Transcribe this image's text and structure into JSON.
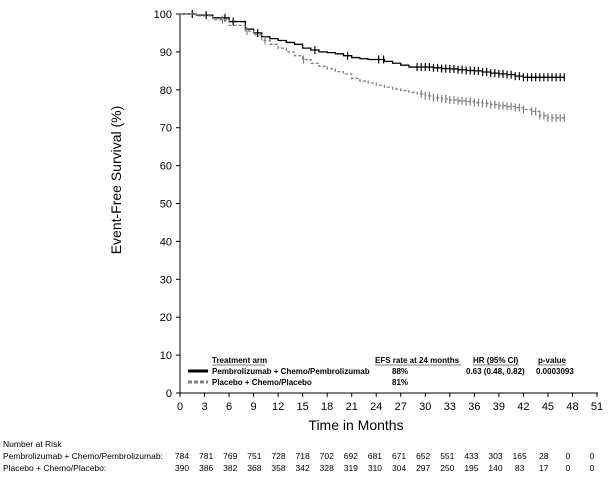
{
  "chart_data": {
    "type": "line",
    "title": "",
    "xlabel": "Time in Months",
    "ylabel": "Event-Free Survival (%)",
    "xlim": [
      0,
      51
    ],
    "ylim": [
      0,
      100
    ],
    "xticks": [
      0,
      3,
      6,
      9,
      12,
      15,
      18,
      21,
      24,
      27,
      30,
      33,
      36,
      39,
      42,
      45,
      48,
      51
    ],
    "yticks": [
      0,
      10,
      20,
      30,
      40,
      50,
      60,
      70,
      80,
      90,
      100
    ],
    "grid": false,
    "series": [
      {
        "name": "Pembrolizumab + Chemo/Pembrolizumab",
        "color": "#000000",
        "line_style": "solid",
        "x": [
          0,
          2,
          4,
          6,
          8,
          9,
          10,
          11,
          12,
          13,
          14,
          15,
          16,
          17,
          18,
          19,
          20,
          21,
          22,
          23,
          24,
          25,
          26,
          27,
          28,
          29,
          30,
          31,
          32,
          33,
          34,
          35,
          36,
          37,
          38,
          39,
          40,
          41,
          42,
          43,
          44,
          45,
          46,
          47
        ],
        "y": [
          100,
          99.7,
          99,
          98,
          96,
          95,
          94,
          93.5,
          93,
          92.5,
          92,
          91,
          90.5,
          90,
          89.8,
          89.5,
          89,
          88.5,
          88.2,
          88,
          88,
          87.5,
          87,
          86.5,
          86,
          86,
          86,
          85.8,
          85.6,
          85.5,
          85.3,
          85.1,
          85,
          84.7,
          84.4,
          84.2,
          84,
          83.6,
          83.3,
          83.3,
          83.3,
          83.3,
          83.3,
          83.3
        ],
        "censor_x": [
          1.5,
          3.2,
          5.5,
          6.5,
          9.5,
          16.5,
          20.5,
          24.3,
          24.9,
          29.0,
          29.5,
          30.0,
          30.5,
          31.0,
          31.5,
          32.0,
          32.5,
          33.0,
          33.5,
          34.0,
          34.5,
          35.0,
          35.5,
          36.0,
          36.5,
          37.0,
          37.5,
          38.0,
          38.5,
          39.0,
          39.5,
          40.0,
          40.5,
          41.0,
          41.5,
          42.0,
          42.5,
          43.0,
          43.5,
          44.0,
          44.5,
          45.0,
          45.5,
          46.0,
          46.5,
          47.0
        ]
      },
      {
        "name": "Placebo + Chemo/Placebo",
        "color": "#808080",
        "line_style": "dashed",
        "x": [
          0,
          2,
          4,
          6,
          8,
          9,
          10,
          11,
          12,
          13,
          14,
          15,
          16,
          17,
          18,
          19,
          20,
          21,
          22,
          23,
          24,
          25,
          26,
          27,
          28,
          29,
          30,
          31,
          32,
          33,
          34,
          35,
          36,
          37,
          38,
          39,
          40,
          41,
          42,
          43,
          44,
          45,
          46,
          47
        ],
        "y": [
          100,
          99.5,
          98.5,
          97,
          95.5,
          94.5,
          93,
          92,
          91,
          90,
          89,
          88,
          87,
          86.2,
          85.5,
          84.8,
          84.2,
          83,
          82.3,
          81.8,
          81.2,
          80.7,
          80.2,
          79.8,
          79.3,
          78.9,
          78.4,
          77.9,
          77.6,
          77.3,
          77.1,
          76.9,
          76.6,
          76.4,
          76.1,
          75.8,
          75.6,
          75.3,
          74.8,
          74.3,
          73.2,
          72.6,
          72.6,
          72.6
        ],
        "censor_x": [
          5.2,
          8.2,
          10.4,
          15.1,
          29.5,
          30.0,
          30.5,
          31.0,
          31.5,
          32.0,
          32.5,
          33.0,
          33.5,
          34.0,
          34.5,
          35.0,
          35.5,
          36.0,
          36.5,
          37.0,
          37.5,
          38.0,
          38.5,
          39.0,
          39.5,
          40.0,
          40.5,
          41.0,
          41.5,
          42.0,
          43.0,
          43.5,
          44.0,
          44.5,
          45.0,
          45.5,
          46.0,
          46.5,
          47.0
        ]
      }
    ],
    "legend_table": {
      "headers": [
        "Treatment arm",
        "EFS rate at 24 months",
        "HR (95% CI)",
        "p-value"
      ],
      "rows": [
        {
          "arm": "Pembrolizumab + Chemo/Pembrolizumab",
          "efs": "88%",
          "hr": "0.63 (0.48, 0.82)",
          "p": "0.0003093"
        },
        {
          "arm": "Placebo + Chemo/Placebo",
          "efs": "81%",
          "hr": "",
          "p": ""
        }
      ]
    },
    "risk_table": {
      "title": "Number at Risk",
      "rows": [
        {
          "label": "Pembrolizumab + Chemo/Pembrolizumab:",
          "values": [
            784,
            781,
            769,
            751,
            728,
            718,
            702,
            692,
            681,
            671,
            652,
            551,
            433,
            303,
            165,
            28,
            0,
            0
          ]
        },
        {
          "label": "Placebo + Chemo/Placebo:",
          "values": [
            390,
            386,
            382,
            368,
            358,
            342,
            328,
            319,
            310,
            304,
            297,
            250,
            195,
            140,
            83,
            17,
            0,
            0
          ]
        }
      ]
    }
  }
}
